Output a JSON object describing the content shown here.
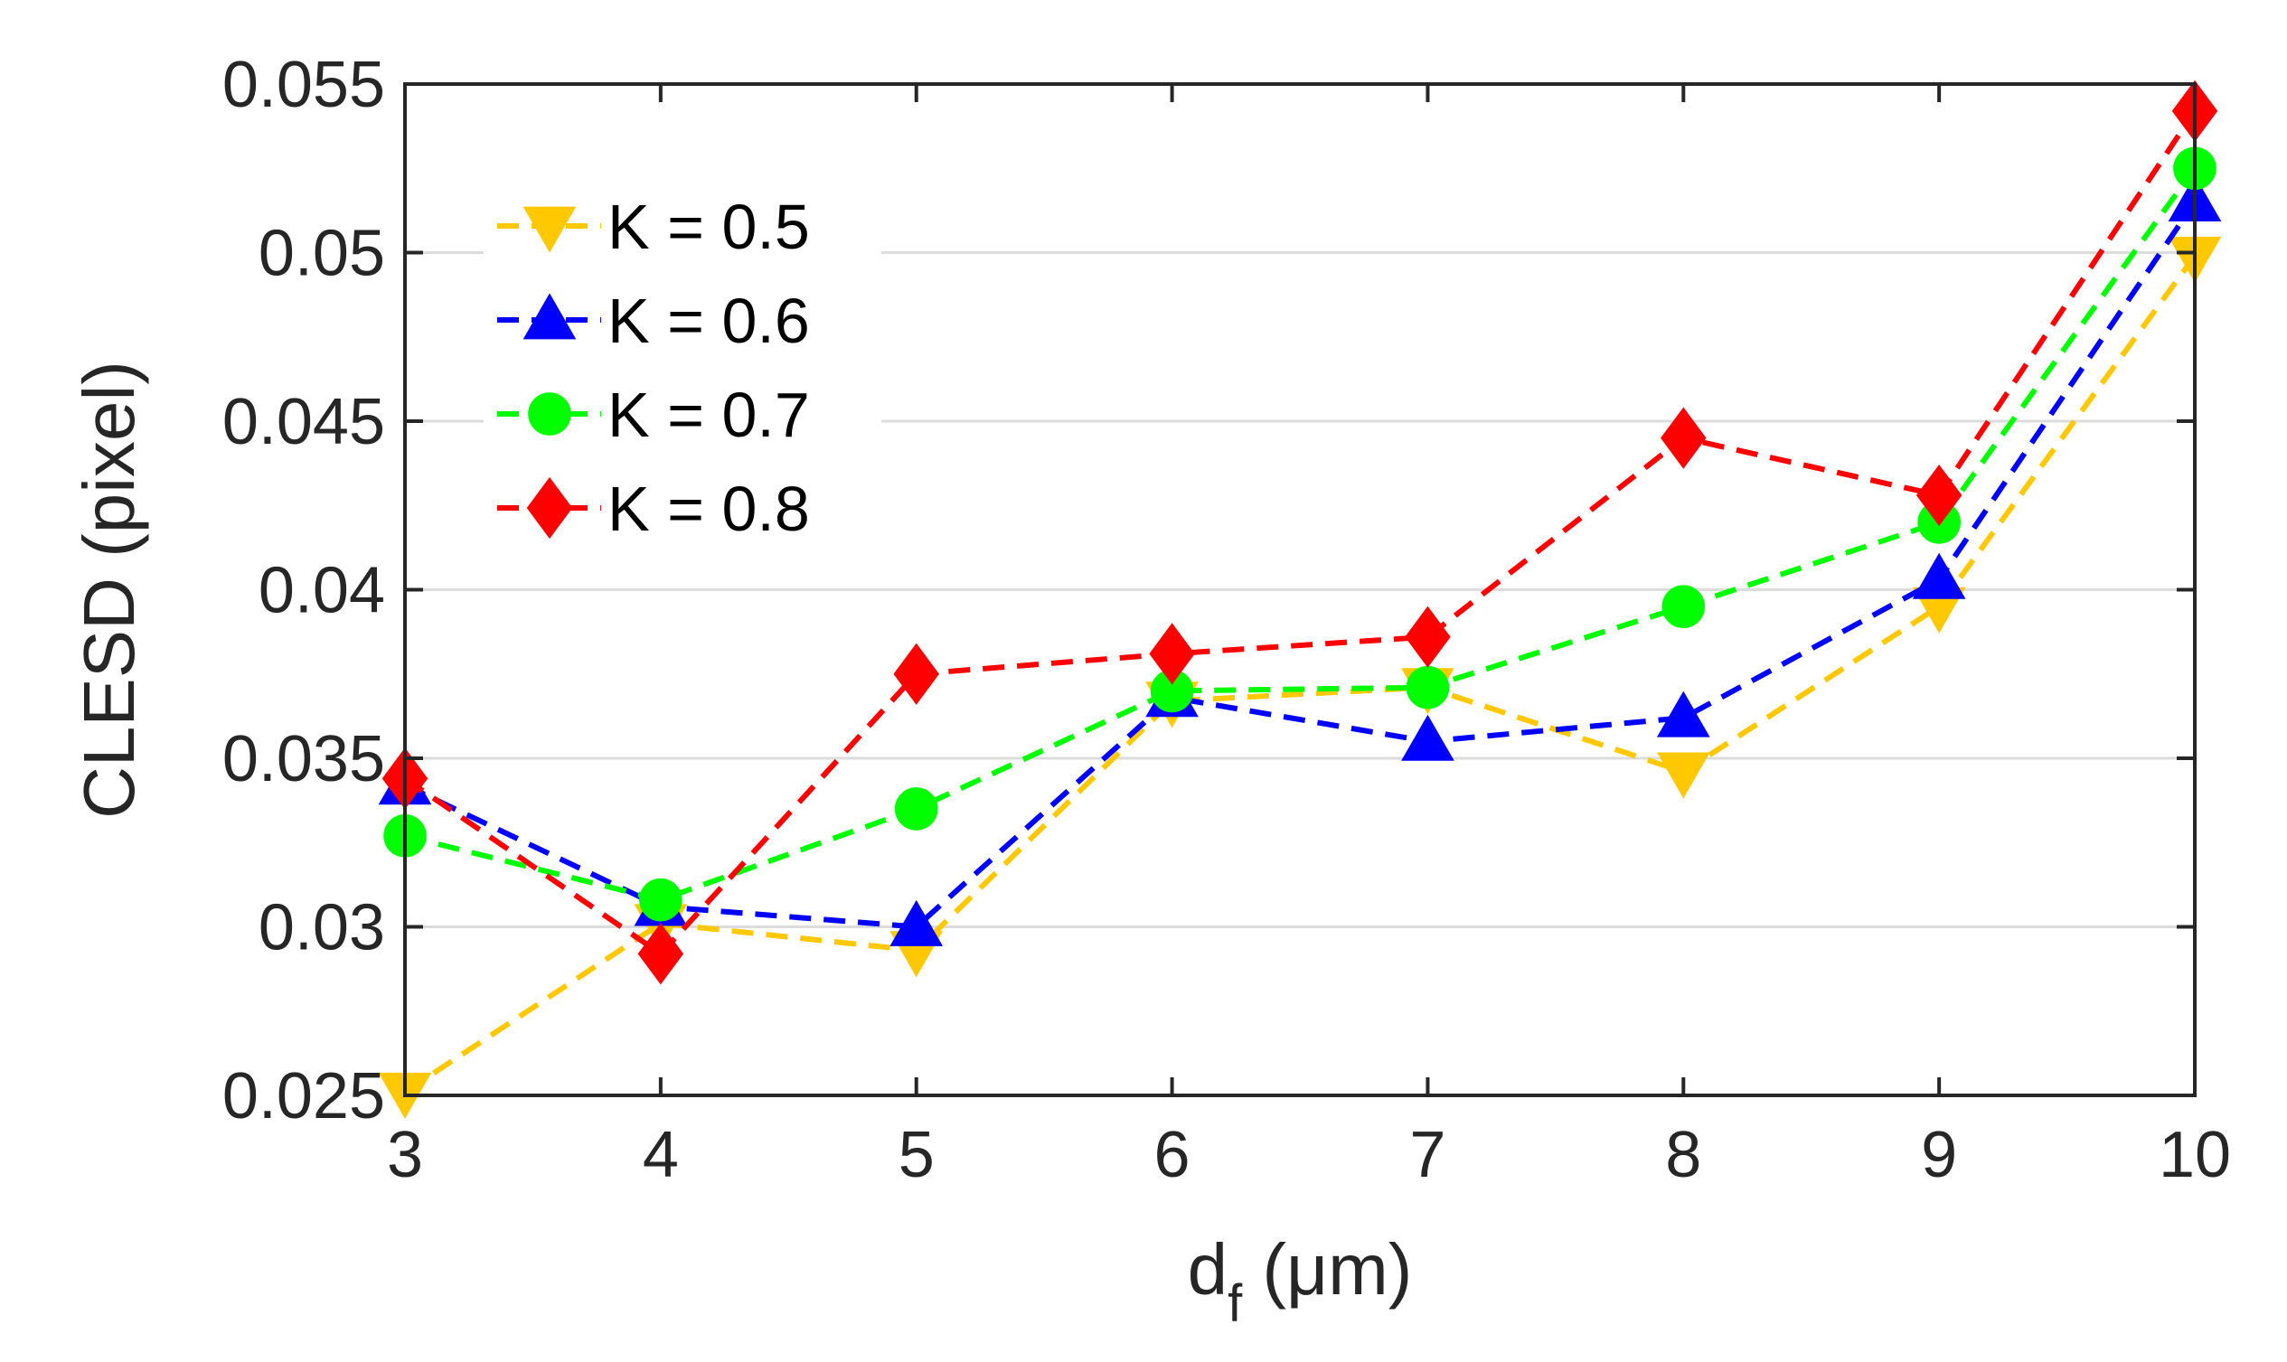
{
  "chart_data": {
    "type": "line",
    "title": "",
    "xlabel": "d",
    "xlabel_subscript": "f",
    "xlabel_unit": " (μm)",
    "ylabel": "CLESD (pixel)",
    "x": [
      3,
      4,
      5,
      6,
      7,
      8,
      9,
      10
    ],
    "xlim": [
      3,
      10
    ],
    "ylim": [
      0.025,
      0.055
    ],
    "xticks": [
      "3",
      "4",
      "5",
      "6",
      "7",
      "8",
      "9",
      "10"
    ],
    "yticks": [
      "0.025",
      "0.03",
      "0.035",
      "0.04",
      "0.045",
      "0.05",
      "0.055"
    ],
    "ytick_values": [
      0.025,
      0.03,
      0.035,
      0.04,
      0.045,
      0.05,
      0.055
    ],
    "grid": true,
    "legend_position": "top-left",
    "series": [
      {
        "name": "K = 0.5",
        "color": "#FFC800",
        "marker": "triangle-down",
        "values": [
          0.0251,
          0.0301,
          0.0293,
          0.0367,
          0.0371,
          0.0346,
          0.0395,
          0.0499
        ]
      },
      {
        "name": "K = 0.6",
        "color": "#0000FF",
        "marker": "triangle-up",
        "values": [
          0.0342,
          0.0306,
          0.03,
          0.0368,
          0.0355,
          0.0362,
          0.0403,
          0.0515
        ]
      },
      {
        "name": "K = 0.7",
        "color": "#00FF00",
        "marker": "circle",
        "values": [
          0.0327,
          0.0308,
          0.0335,
          0.037,
          0.0371,
          0.0395,
          0.042,
          0.0525
        ]
      },
      {
        "name": "K = 0.8",
        "color": "#FF0000",
        "marker": "diamond",
        "values": [
          0.0344,
          0.0292,
          0.0375,
          0.0381,
          0.0386,
          0.0445,
          0.0428,
          0.0542
        ]
      }
    ]
  }
}
